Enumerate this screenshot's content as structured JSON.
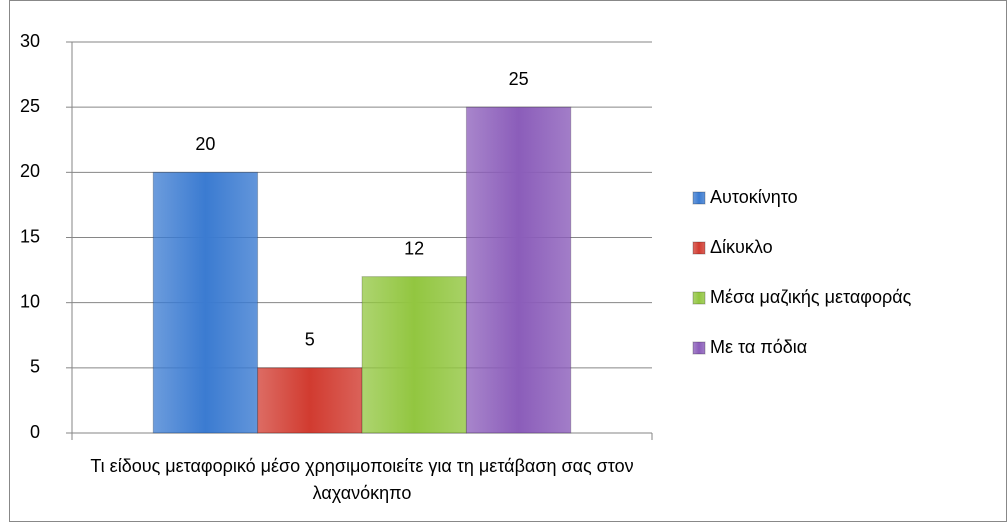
{
  "chart_data": {
    "type": "bar",
    "categories": [
      "Τι είδους μεταφορικό μέσο χρησιμοποιείτε για τη μετάβαση σας στον λαχανόκηπο"
    ],
    "series": [
      {
        "name": "Αυτοκίνητο",
        "color": "#3b7bd1",
        "values": [
          20
        ]
      },
      {
        "name": "Δίκυκλο",
        "color": "#d13b30",
        "values": [
          5
        ]
      },
      {
        "name": "Μέσα μαζικής μεταφοράς",
        "color": "#92c640",
        "values": [
          12
        ]
      },
      {
        "name": "Με τα πόδια",
        "color": "#8b5dba",
        "values": [
          25
        ]
      }
    ],
    "ylim": [
      0,
      30
    ],
    "yticks": [
      0,
      5,
      10,
      15,
      20,
      25,
      30
    ],
    "grid": true,
    "legend": "right"
  }
}
